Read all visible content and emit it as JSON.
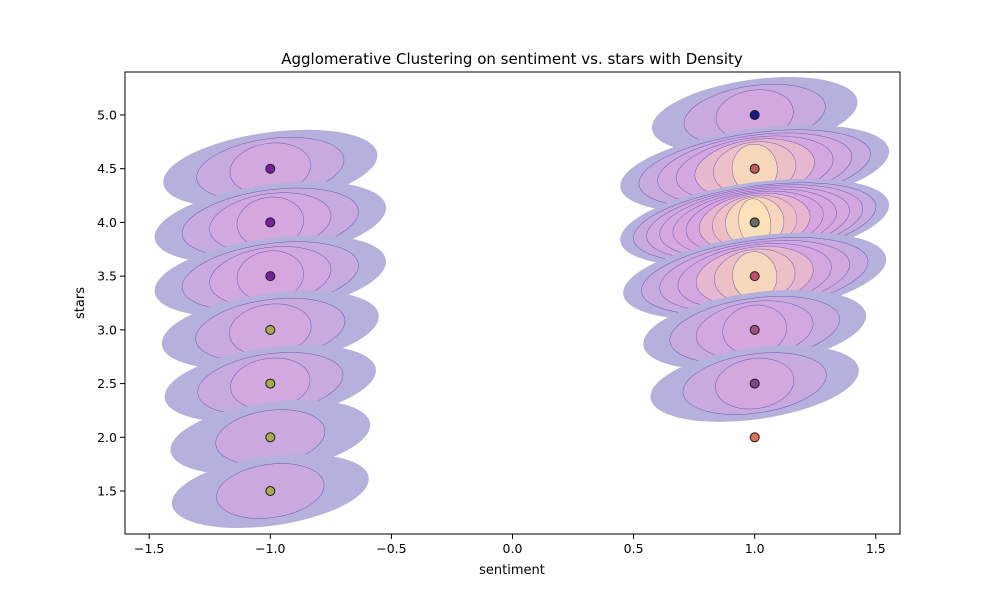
{
  "chart_data": {
    "type": "scatter",
    "title": "Agglomerative Clustering on sentiment vs. stars with Density",
    "xlabel": "sentiment",
    "ylabel": "stars",
    "xlim": [
      -1.6,
      1.6
    ],
    "ylim": [
      1.1,
      5.4
    ],
    "xticks": [
      -1.5,
      -1.0,
      -0.5,
      0.0,
      0.5,
      1.0,
      1.5
    ],
    "xtick_labels": [
      "−1.5",
      "−1.0",
      "−0.5",
      "0.0",
      "0.5",
      "1.0",
      "1.5"
    ],
    "yticks": [
      1.5,
      2.0,
      2.5,
      3.0,
      3.5,
      4.0,
      4.5,
      5.0
    ],
    "ytick_labels": [
      "1.5",
      "2.0",
      "2.5",
      "3.0",
      "3.5",
      "4.0",
      "4.5",
      "5.0"
    ],
    "grid": false,
    "points": [
      {
        "x": -1.0,
        "y": 4.5,
        "color": "#7b1fa2"
      },
      {
        "x": -1.0,
        "y": 4.0,
        "color": "#7b1fa2"
      },
      {
        "x": -1.0,
        "y": 3.5,
        "color": "#7b1fa2"
      },
      {
        "x": -1.0,
        "y": 3.0,
        "color": "#a9a94a"
      },
      {
        "x": -1.0,
        "y": 2.5,
        "color": "#a9a94a"
      },
      {
        "x": -1.0,
        "y": 2.0,
        "color": "#a9a94a"
      },
      {
        "x": -1.0,
        "y": 1.5,
        "color": "#a9a94a"
      },
      {
        "x": 1.0,
        "y": 5.0,
        "color": "#1a1a8c"
      },
      {
        "x": 1.0,
        "y": 4.5,
        "color": "#c05a5a"
      },
      {
        "x": 1.0,
        "y": 4.0,
        "color": "#6a6a6a"
      },
      {
        "x": 1.0,
        "y": 3.5,
        "color": "#c0506a"
      },
      {
        "x": 1.0,
        "y": 3.0,
        "color": "#a0507a"
      },
      {
        "x": 1.0,
        "y": 2.5,
        "color": "#7a4a8a"
      },
      {
        "x": 1.0,
        "y": 2.0,
        "color": "#e07050"
      }
    ],
    "density_blobs": [
      {
        "x": -1.0,
        "y": 4.5,
        "weight": 0.55
      },
      {
        "x": -1.0,
        "y": 4.0,
        "weight": 0.85
      },
      {
        "x": -1.0,
        "y": 3.5,
        "weight": 0.85
      },
      {
        "x": -1.0,
        "y": 3.0,
        "weight": 0.6
      },
      {
        "x": -1.0,
        "y": 2.5,
        "weight": 0.5
      },
      {
        "x": -1.0,
        "y": 2.0,
        "weight": 0.3
      },
      {
        "x": -1.0,
        "y": 1.5,
        "weight": 0.25
      },
      {
        "x": 1.0,
        "y": 5.0,
        "weight": 0.4
      },
      {
        "x": 1.0,
        "y": 4.5,
        "weight": 1.5
      },
      {
        "x": 1.0,
        "y": 4.0,
        "weight": 2.3
      },
      {
        "x": 1.0,
        "y": 3.5,
        "weight": 1.4
      },
      {
        "x": 1.0,
        "y": 3.0,
        "weight": 0.7
      },
      {
        "x": 1.0,
        "y": 2.5,
        "weight": 0.45
      }
    ],
    "colors": {
      "density_low": "#b5b0dc",
      "density_mid": "#d9a6e0",
      "density_high": "#f2c4c0",
      "density_peak": "#fde8b4",
      "contour_line": "#5548b0",
      "marker_edge": "#1a1a1a"
    }
  }
}
